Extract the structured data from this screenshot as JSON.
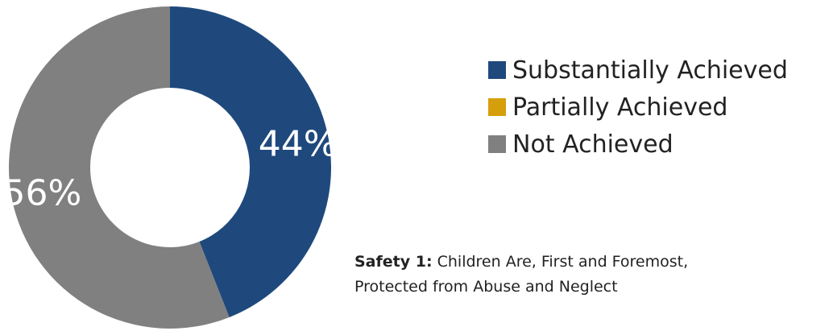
{
  "chart_data": {
    "type": "pie",
    "donut": true,
    "categories": [
      "Substantially Achieved",
      "Partially Achieved",
      "Not Achieved"
    ],
    "values": [
      44,
      0,
      56
    ],
    "value_labels": [
      "44%",
      "",
      "56%"
    ],
    "colors": [
      "#1F497D",
      "#D59E0B",
      "#808080"
    ],
    "legend_position": "right"
  },
  "caption": {
    "bold": "Safety 1:",
    "text": " Children Are, First and Foremost, Protected from Abuse and Neglect"
  }
}
